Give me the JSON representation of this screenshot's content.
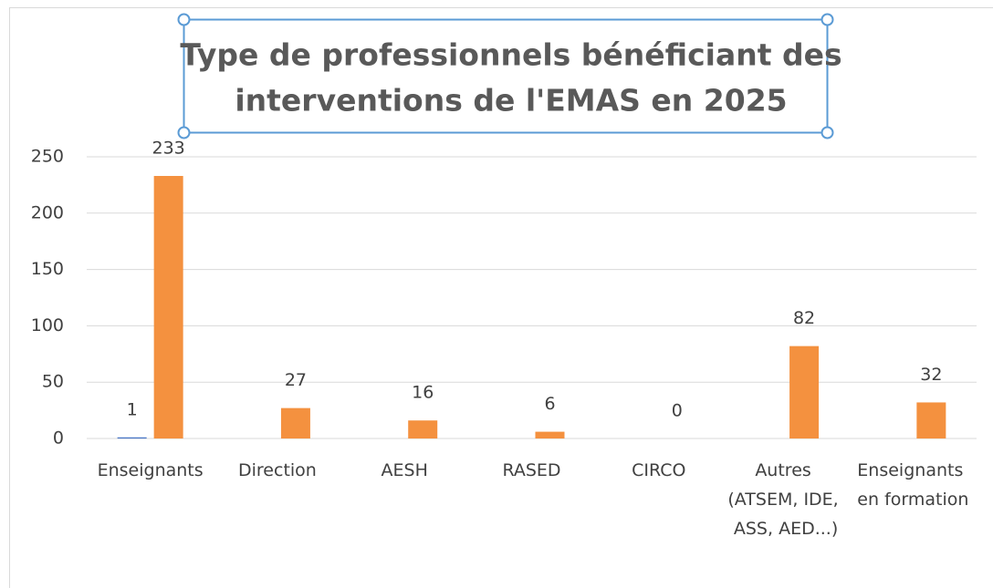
{
  "chart_data": {
    "type": "bar",
    "title": [
      "Type de professionnels bénéficiant des",
      "interventions de l'EMAS en 2025"
    ],
    "categories": [
      "Enseignants",
      "Direction",
      "AESH",
      "RASED",
      "CIRCO",
      "Autres (ATSEM, IDE, ASS, AED...)",
      "Enseignants en formation"
    ],
    "series": [
      {
        "color": "#4472c4",
        "values": [
          1,
          null,
          null,
          null,
          null,
          null,
          null
        ]
      },
      {
        "color": "#f4913f",
        "values": [
          233,
          27,
          16,
          6,
          0,
          82,
          32
        ]
      }
    ],
    "ylim": [
      0,
      250
    ],
    "yticks": [
      0,
      50,
      100,
      150,
      200,
      250
    ],
    "grid": true
  }
}
